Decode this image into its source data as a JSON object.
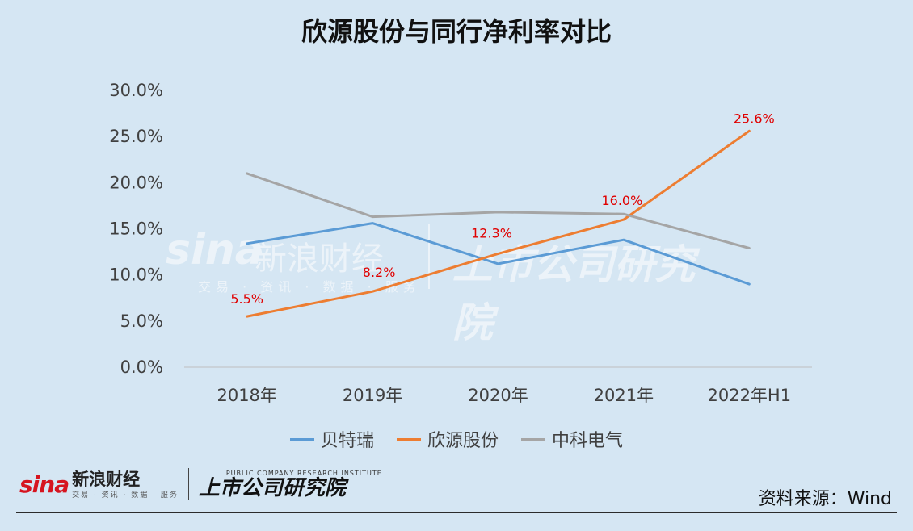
{
  "title": "欣源股份与同行净利率对比",
  "chart_data": {
    "type": "line",
    "title": "欣源股份与同行净利率对比",
    "categories": [
      "2018年",
      "2019年",
      "2020年",
      "2021年",
      "2022年H1"
    ],
    "yticks": [
      "0.0%",
      "5.0%",
      "10.0%",
      "15.0%",
      "20.0%",
      "25.0%",
      "30.0%"
    ],
    "ylim": [
      0,
      30
    ],
    "grid": false,
    "legend_position": "bottom",
    "series": [
      {
        "name": "贝特瑞",
        "values": [
          13.4,
          15.6,
          11.2,
          13.8,
          9.0
        ],
        "color": "#5b9bd5",
        "labels": [
          "",
          "",
          "",
          "",
          ""
        ]
      },
      {
        "name": "欣源股份",
        "values": [
          5.5,
          8.2,
          12.3,
          16.0,
          25.6
        ],
        "color": "#ed7d31",
        "labels": [
          "5.5%",
          "8.2%",
          "12.3%",
          "16.0%",
          "25.6%"
        ]
      },
      {
        "name": "中科电气",
        "values": [
          21.0,
          16.3,
          16.8,
          16.6,
          12.9
        ],
        "color": "#a5a5a5",
        "labels": [
          "",
          "",
          "",
          "",
          ""
        ]
      }
    ],
    "label_color": "#e00000"
  },
  "footer": {
    "sina_logo": "sina",
    "sina_name": "新浪财经",
    "sina_tag": "交易 · 资讯 · 数据 · 服务",
    "institute_en": "PUBLIC COMPANY RESEARCH INSTITUTE",
    "institute_cn": "上市公司研究院",
    "source": "资料来源：Wind"
  }
}
